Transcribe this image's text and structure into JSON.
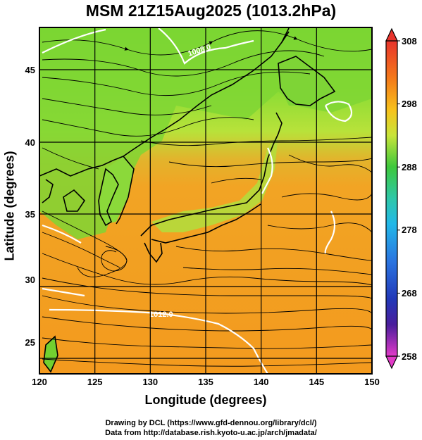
{
  "title": "MSM 21Z15Aug2025 (1013.2hPa)",
  "axes": {
    "xlabel": "Longitude (degrees)",
    "ylabel": "Latitude  (degrees)",
    "xlim": [
      120,
      150
    ],
    "ylim": [
      22.4,
      47.6
    ],
    "xticks": [
      "120",
      "125",
      "130",
      "135",
      "140",
      "145",
      "150"
    ],
    "yticks": [
      "25",
      "30",
      "35",
      "40",
      "45"
    ]
  },
  "colorbar": {
    "min": 258,
    "max": 308,
    "labels": [
      "308",
      "298",
      "288",
      "278",
      "268",
      "258"
    ]
  },
  "contour_labels": {
    "isobar_north": "1008.0",
    "isobar_south": "1012.0"
  },
  "credits": {
    "line1": "Drawing by DCL (https://www.gfd-dennou.org/library/dcl/)",
    "line2": "Data from http://database.rish.kyoto-u.ac.jp/arch/jmadata/"
  },
  "colors": {
    "warm": "#f7a020",
    "mid": "#a8e038",
    "cool": "#52cc28",
    "contour": "#ffffff",
    "coast": "#000000"
  }
}
